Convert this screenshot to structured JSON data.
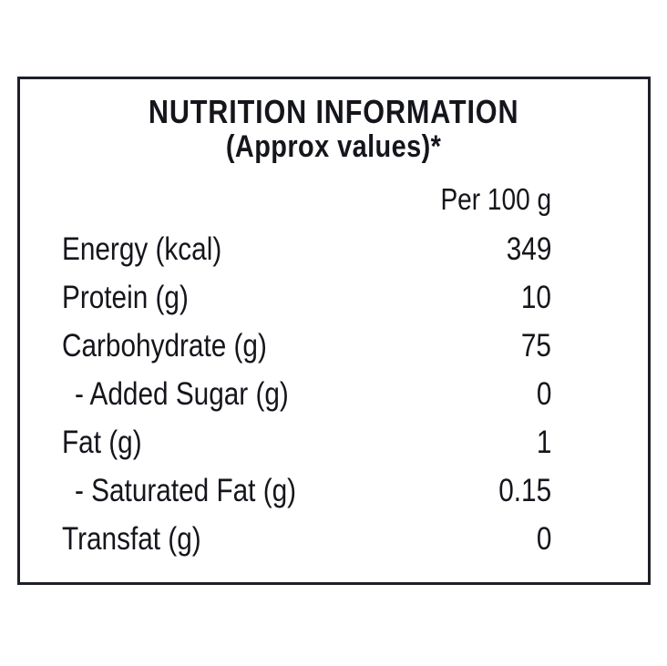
{
  "label": {
    "title_line1": "NUTRITION INFORMATION",
    "title_line2": "(Approx values)*",
    "column_header": "Per 100 g",
    "rows": [
      {
        "name": "Energy (kcal)",
        "value": "349"
      },
      {
        "name": "Protein (g)",
        "value": "10"
      },
      {
        "name": "Carbohydrate (g)",
        "value": "75"
      },
      {
        "name": "- Added Sugar (g)",
        "value": "0"
      },
      {
        "name": "Fat (g)",
        "value": "1"
      },
      {
        "name": "- Saturated Fat (g)",
        "value": "0.15"
      },
      {
        "name": "Transfat (g)",
        "value": "0"
      }
    ],
    "colors": {
      "background": "#ffffff",
      "border": "#1d2027",
      "text": "#15161c"
    }
  }
}
